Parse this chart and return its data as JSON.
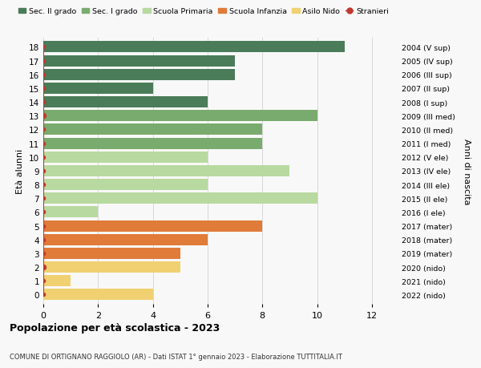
{
  "ages": [
    18,
    17,
    16,
    15,
    14,
    13,
    12,
    11,
    10,
    9,
    8,
    7,
    6,
    5,
    4,
    3,
    2,
    1,
    0
  ],
  "years": [
    "2004 (V sup)",
    "2005 (IV sup)",
    "2006 (III sup)",
    "2007 (II sup)",
    "2008 (I sup)",
    "2009 (III med)",
    "2010 (II med)",
    "2011 (I med)",
    "2012 (V ele)",
    "2013 (IV ele)",
    "2014 (III ele)",
    "2015 (II ele)",
    "2016 (I ele)",
    "2017 (mater)",
    "2018 (mater)",
    "2019 (mater)",
    "2020 (nido)",
    "2021 (nido)",
    "2022 (nido)"
  ],
  "values": [
    11,
    7,
    7,
    4,
    6,
    10,
    8,
    8,
    6,
    9,
    6,
    10,
    2,
    8,
    6,
    5,
    5,
    1,
    4
  ],
  "stranieri_all": [
    0,
    0,
    0,
    0,
    0,
    1,
    0,
    0,
    0,
    0,
    0,
    0,
    0,
    0,
    0,
    0,
    1,
    0,
    0
  ],
  "bar_colors": [
    "#4a7c59",
    "#4a7c59",
    "#4a7c59",
    "#4a7c59",
    "#4a7c59",
    "#7aab6e",
    "#7aab6e",
    "#7aab6e",
    "#b8d9a0",
    "#b8d9a0",
    "#b8d9a0",
    "#b8d9a0",
    "#b8d9a0",
    "#e07b39",
    "#e07b39",
    "#e07b39",
    "#f0d070",
    "#f0d070",
    "#f0d070"
  ],
  "legend_labels": [
    "Sec. II grado",
    "Sec. I grado",
    "Scuola Primaria",
    "Scuola Infanzia",
    "Asilo Nido",
    "Stranieri"
  ],
  "legend_colors": [
    "#4a7c59",
    "#7aab6e",
    "#b8d9a0",
    "#e07b39",
    "#f0d070",
    "#c0392b"
  ],
  "stranieri_color": "#c0392b",
  "title": "Popolazione per età scolastica - 2023",
  "subtitle": "COMUNE DI ORTIGNANO RAGGIOLO (AR) - Dati ISTAT 1° gennaio 2023 - Elaborazione TUTTITALIA.IT",
  "ylabel_left": "Età alunni",
  "ylabel_right": "Anni di nascita",
  "xlim": [
    0,
    13
  ],
  "bg_color": "#f8f8f8",
  "grid_color": "#d8d8d8",
  "bar_height": 0.82
}
